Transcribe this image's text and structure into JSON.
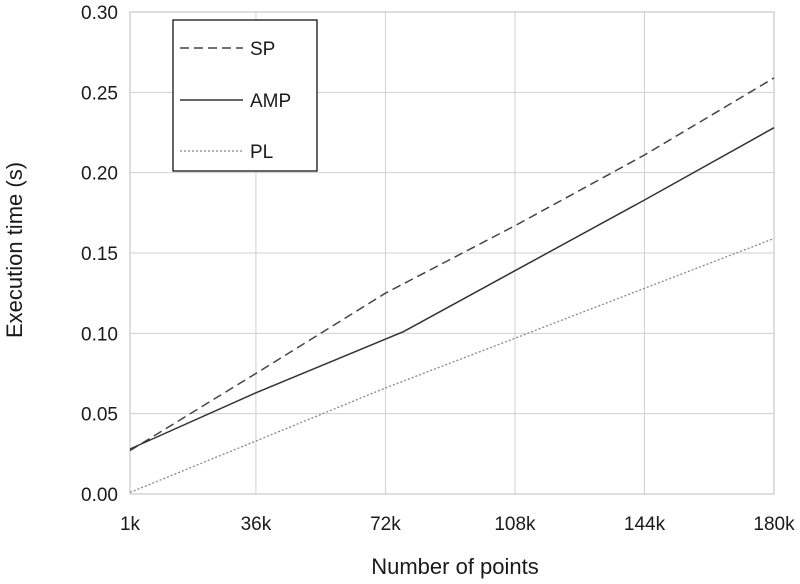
{
  "chart_data": {
    "type": "line",
    "xlabel": "Number of points",
    "ylabel": "Execution time (s)",
    "x_ticks": [
      "1k",
      "36k",
      "72k",
      "108k",
      "144k",
      "180k"
    ],
    "x_tick_values": [
      1,
      36,
      72,
      108,
      144,
      180
    ],
    "xlim": [
      1,
      180
    ],
    "y_ticks": [
      "0.00",
      "0.05",
      "0.10",
      "0.15",
      "0.20",
      "0.25",
      "0.30"
    ],
    "y_tick_values": [
      0,
      0.05,
      0.1,
      0.15,
      0.2,
      0.25,
      0.3
    ],
    "ylim": [
      0,
      0.3
    ],
    "grid": true,
    "legend_position": "top-left",
    "series": [
      {
        "name": "SP",
        "style": "dashed",
        "color": "#444444",
        "x": [
          1,
          36,
          72,
          108,
          144,
          180
        ],
        "y": [
          0.027,
          0.075,
          0.125,
          0.167,
          0.211,
          0.259
        ]
      },
      {
        "name": "AMP",
        "style": "solid",
        "color": "#333333",
        "x": [
          1,
          36,
          77,
          108,
          144,
          180
        ],
        "y": [
          0.028,
          0.063,
          0.101,
          0.139,
          0.183,
          0.228
        ]
      },
      {
        "name": "PL",
        "style": "dotted",
        "color": "#888888",
        "x": [
          1,
          36,
          72,
          108,
          144,
          180
        ],
        "y": [
          0.001,
          0.033,
          0.066,
          0.097,
          0.128,
          0.159
        ]
      }
    ]
  }
}
